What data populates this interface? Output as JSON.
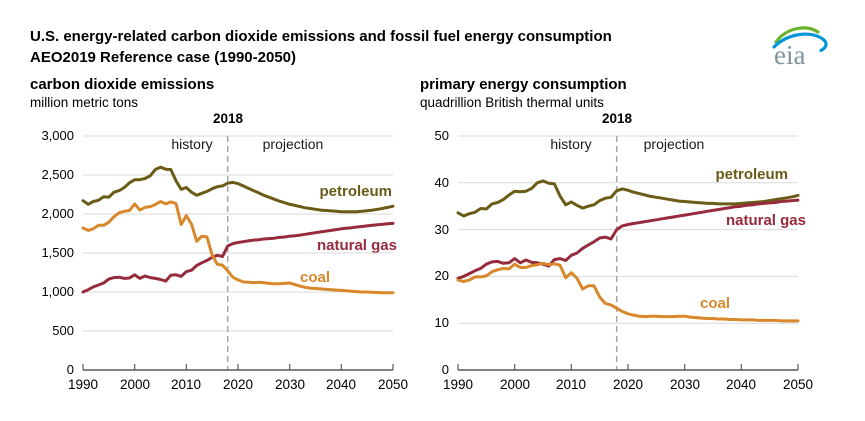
{
  "header": {
    "title_line1": "U.S. energy-related carbon dioxide emissions and fossil fuel energy consumption",
    "title_line2": "AEO2019 Reference case (1990-2050)",
    "logo": {
      "text": "eia"
    }
  },
  "colors": {
    "petroleum": "#6a5b16",
    "natural_gas": "#962b3c",
    "coal": "#d8882b",
    "gridline": "#d9d9d9",
    "axis": "#595959",
    "divider": "#a6a6a6",
    "text": "#000000",
    "logo_text": "#7f929e",
    "logo_green": "#69b32e",
    "logo_blue": "#0096d7"
  },
  "chart_data": [
    {
      "type": "line",
      "title": "carbon dioxide emissions",
      "ylabel": "million metric tons",
      "x_range": [
        1990,
        2050
      ],
      "x_ticks": [
        1990,
        2000,
        2010,
        2020,
        2030,
        2040,
        2050
      ],
      "ylim": [
        0,
        3000
      ],
      "y_ticks": [
        0,
        500,
        1000,
        1500,
        2000,
        2500,
        3000
      ],
      "y_tick_labels": [
        "0",
        "500",
        "1,000",
        "1,500",
        "2,000",
        "2,500",
        "3,000"
      ],
      "grid": "horizontal",
      "legend_position": "inline-right",
      "divider": {
        "year": 2018,
        "label": "2018",
        "left_label": "history",
        "right_label": "projection"
      },
      "series": [
        {
          "name": "petroleum",
          "color_key": "petroleum",
          "values": [
            2170,
            2125,
            2160,
            2175,
            2220,
            2215,
            2280,
            2300,
            2340,
            2400,
            2440,
            2440,
            2455,
            2490,
            2570,
            2600,
            2575,
            2570,
            2425,
            2315,
            2340,
            2280,
            2240,
            2265,
            2290,
            2325,
            2350,
            2360,
            2395,
            2405,
            2390,
            2360,
            2330,
            2300,
            2270,
            2240,
            2215,
            2190,
            2165,
            2145,
            2125,
            2110,
            2095,
            2080,
            2070,
            2060,
            2050,
            2045,
            2040,
            2035,
            2030,
            2028,
            2028,
            2030,
            2035,
            2042,
            2050,
            2060,
            2072,
            2085,
            2100
          ]
        },
        {
          "name": "natural gas",
          "color_key": "natural_gas",
          "values": [
            1000,
            1030,
            1065,
            1090,
            1115,
            1165,
            1185,
            1190,
            1175,
            1180,
            1220,
            1175,
            1205,
            1185,
            1175,
            1160,
            1140,
            1215,
            1220,
            1200,
            1260,
            1280,
            1340,
            1375,
            1405,
            1445,
            1470,
            1455,
            1590,
            1620,
            1635,
            1645,
            1655,
            1665,
            1670,
            1680,
            1685,
            1690,
            1700,
            1705,
            1715,
            1720,
            1730,
            1740,
            1750,
            1760,
            1770,
            1780,
            1790,
            1800,
            1810,
            1818,
            1825,
            1833,
            1840,
            1848,
            1855,
            1862,
            1868,
            1874,
            1880
          ]
        },
        {
          "name": "coal",
          "color_key": "coal",
          "values": [
            1820,
            1790,
            1810,
            1855,
            1855,
            1895,
            1965,
            2015,
            2035,
            2045,
            2130,
            2050,
            2085,
            2095,
            2120,
            2160,
            2130,
            2155,
            2135,
            1865,
            1980,
            1870,
            1650,
            1715,
            1705,
            1470,
            1355,
            1345,
            1270,
            1190,
            1155,
            1130,
            1125,
            1120,
            1125,
            1120,
            1110,
            1105,
            1105,
            1110,
            1115,
            1095,
            1075,
            1060,
            1050,
            1045,
            1040,
            1035,
            1030,
            1025,
            1020,
            1015,
            1010,
            1005,
            1000,
            1000,
            995,
            995,
            990,
            990,
            990
          ]
        }
      ]
    },
    {
      "type": "line",
      "title": "primary energy consumption",
      "ylabel": "quadrillion British thermal units",
      "x_range": [
        1990,
        2050
      ],
      "x_ticks": [
        1990,
        2000,
        2010,
        2020,
        2030,
        2040,
        2050
      ],
      "ylim": [
        0,
        50
      ],
      "y_ticks": [
        0,
        10,
        20,
        30,
        40,
        50
      ],
      "y_tick_labels": [
        "0",
        "10",
        "20",
        "30",
        "40",
        "50"
      ],
      "grid": "horizontal",
      "legend_position": "inline-right",
      "divider": {
        "year": 2018,
        "label": "2018",
        "left_label": "history",
        "right_label": "projection"
      },
      "series": [
        {
          "name": "petroleum",
          "color_key": "petroleum",
          "values": [
            33.6,
            32.9,
            33.4,
            33.7,
            34.5,
            34.4,
            35.5,
            35.8,
            36.4,
            37.4,
            38.2,
            38.1,
            38.2,
            38.8,
            40.0,
            40.4,
            39.9,
            39.8,
            37.2,
            35.3,
            35.9,
            35.2,
            34.6,
            35.0,
            35.3,
            36.2,
            36.7,
            36.9,
            38.3,
            38.7,
            38.4,
            38.0,
            37.7,
            37.4,
            37.1,
            36.9,
            36.7,
            36.5,
            36.3,
            36.1,
            36.0,
            35.9,
            35.8,
            35.7,
            35.6,
            35.6,
            35.5,
            35.5,
            35.5,
            35.5,
            35.6,
            35.7,
            35.8,
            35.9,
            36.0,
            36.2,
            36.4,
            36.6,
            36.8,
            37.0,
            37.3
          ]
        },
        {
          "name": "natural gas",
          "color_key": "natural_gas",
          "values": [
            19.6,
            20.0,
            20.6,
            21.2,
            21.7,
            22.6,
            23.1,
            23.2,
            22.8,
            22.9,
            23.8,
            22.9,
            23.5,
            23.0,
            22.9,
            22.6,
            22.2,
            23.6,
            23.8,
            23.4,
            24.5,
            25.0,
            26.0,
            26.7,
            27.4,
            28.2,
            28.4,
            28.0,
            30.0,
            30.8,
            31.1,
            31.3,
            31.5,
            31.7,
            31.9,
            32.1,
            32.3,
            32.5,
            32.7,
            32.9,
            33.1,
            33.3,
            33.5,
            33.7,
            33.9,
            34.1,
            34.3,
            34.5,
            34.7,
            34.9,
            35.0,
            35.2,
            35.3,
            35.5,
            35.6,
            35.7,
            35.8,
            36.0,
            36.1,
            36.2,
            36.3
          ]
        },
        {
          "name": "coal",
          "color_key": "coal",
          "values": [
            19.2,
            18.9,
            19.2,
            19.9,
            19.9,
            20.1,
            21.0,
            21.4,
            21.7,
            21.6,
            22.6,
            21.9,
            21.9,
            22.3,
            22.5,
            22.8,
            22.5,
            22.7,
            22.4,
            19.7,
            20.8,
            19.6,
            17.3,
            18.0,
            18.0,
            15.6,
            14.2,
            13.9,
            13.2,
            12.5,
            12.0,
            11.7,
            11.5,
            11.4,
            11.5,
            11.5,
            11.4,
            11.4,
            11.4,
            11.5,
            11.5,
            11.3,
            11.2,
            11.1,
            11.0,
            11.0,
            10.9,
            10.9,
            10.8,
            10.8,
            10.7,
            10.7,
            10.7,
            10.6,
            10.6,
            10.6,
            10.6,
            10.5,
            10.5,
            10.5,
            10.5
          ]
        }
      ]
    }
  ]
}
